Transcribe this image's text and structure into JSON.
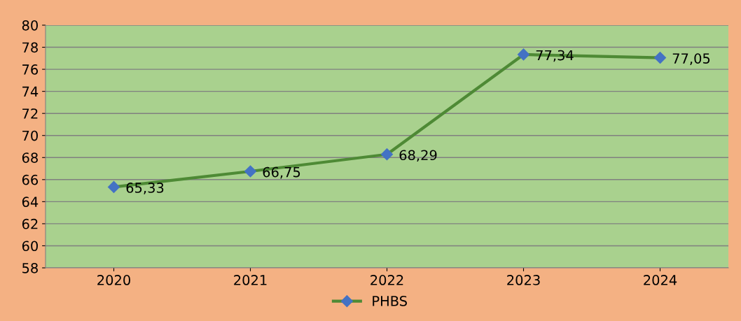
{
  "chart_data": {
    "type": "line",
    "categories": [
      "2020",
      "2021",
      "2022",
      "2023",
      "2024"
    ],
    "series": [
      {
        "name": "PHBS",
        "color": "#4e8a35",
        "colors": [
          "#4472c4",
          "#4472c4",
          "#4472c4",
          "#4472c4",
          "#4472c4"
        ],
        "values": [
          65.33,
          66.75,
          68.29,
          77.34,
          77.05
        ],
        "value_labels": [
          "65,33",
          "66,75",
          "68,29",
          "77,34",
          "77,05"
        ]
      }
    ],
    "ylim": [
      58,
      80
    ],
    "yticks": [
      58,
      60,
      62,
      64,
      66,
      68,
      70,
      72,
      74,
      76,
      78,
      80
    ],
    "grid": "y",
    "legend": "bottom",
    "marker": "diamond",
    "line_style": "solid"
  }
}
